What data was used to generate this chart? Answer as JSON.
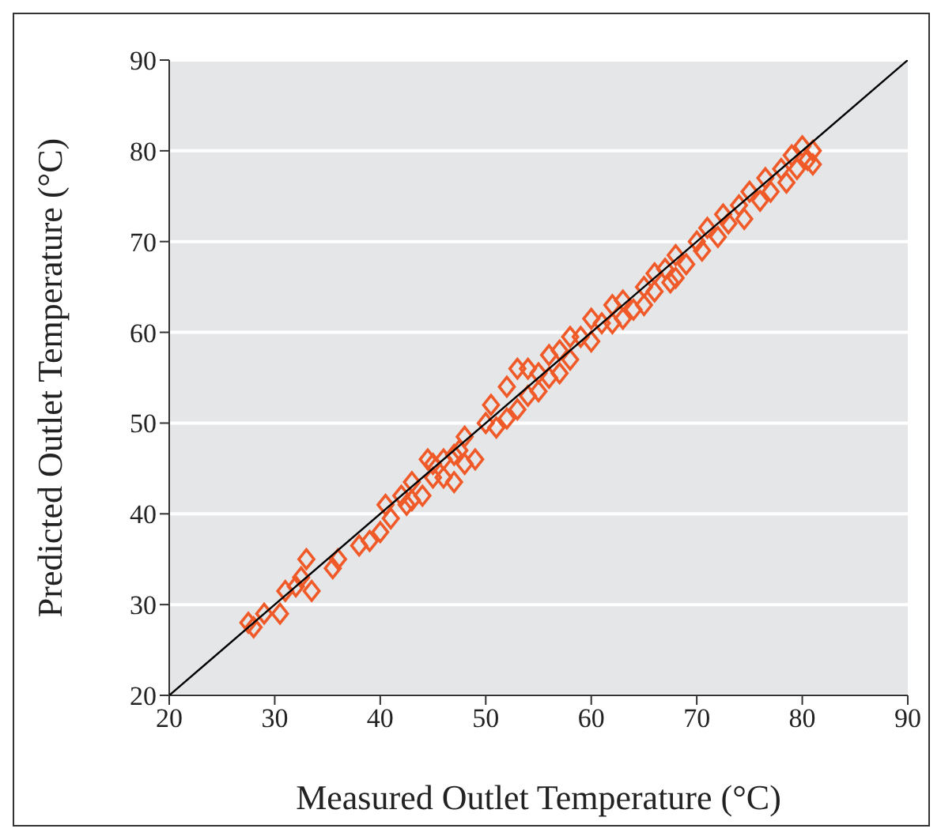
{
  "chart_data": {
    "type": "scatter",
    "xlabel": "Measured Outlet Temperature (°C)",
    "ylabel": "Predicted Outlet Temperature (°C)",
    "xlim": [
      20,
      90
    ],
    "ylim": [
      20,
      90
    ],
    "xticks": [
      20,
      30,
      40,
      50,
      60,
      70,
      80,
      90
    ],
    "yticks": [
      20,
      30,
      40,
      50,
      60,
      70,
      80,
      90
    ],
    "grid": "y",
    "marker": "diamond",
    "series": [
      {
        "color": "#f05a28",
        "x": [
          27.5,
          28,
          29,
          30.5,
          31,
          32,
          32.5,
          33,
          33.5,
          35.5,
          36,
          38,
          39,
          40,
          40.5,
          41,
          42,
          42.5,
          43,
          44,
          44.5,
          45,
          46,
          47,
          47.5,
          48,
          49,
          50,
          50.5,
          51,
          52,
          53,
          53,
          54,
          55,
          56,
          57,
          58,
          59,
          60,
          61,
          62,
          63,
          64,
          65,
          66,
          67,
          67.5,
          68,
          69,
          70,
          70.5,
          71,
          72,
          72.5,
          73,
          74,
          74.5,
          75,
          76,
          76.5,
          77,
          78,
          78.5,
          79,
          79.5,
          80,
          80.5,
          81,
          81,
          52,
          48,
          47,
          46,
          55,
          57,
          58,
          60,
          62,
          63,
          65,
          66,
          68,
          54,
          56,
          43,
          45
        ],
        "values": [
          28,
          27.5,
          29,
          29,
          31.5,
          32,
          33,
          35,
          31.5,
          34,
          35,
          36.5,
          37,
          38,
          41,
          39.5,
          42,
          41,
          43.5,
          42,
          46,
          44,
          46,
          43.5,
          47,
          48.5,
          46,
          50,
          52,
          49.5,
          54,
          51.5,
          56,
          53,
          55.5,
          55,
          58,
          57,
          59.5,
          59,
          61,
          61,
          63.5,
          62.5,
          65,
          64.5,
          67,
          65.5,
          68.5,
          67.5,
          70,
          69,
          71.5,
          70.5,
          73,
          72,
          74,
          72.5,
          75.5,
          74.5,
          77,
          75.5,
          78,
          76.5,
          79.5,
          78,
          80.5,
          79,
          80,
          78.5,
          50.5,
          45.5,
          46.5,
          44,
          53.5,
          55.5,
          59.5,
          61.5,
          63,
          61.5,
          63,
          66.5,
          66,
          56,
          57.5,
          41.5,
          45.5
        ]
      },
      {
        "type": "line",
        "color": "#000000",
        "x": [
          20,
          90
        ],
        "values": [
          20,
          90
        ],
        "marker": "none"
      }
    ]
  }
}
